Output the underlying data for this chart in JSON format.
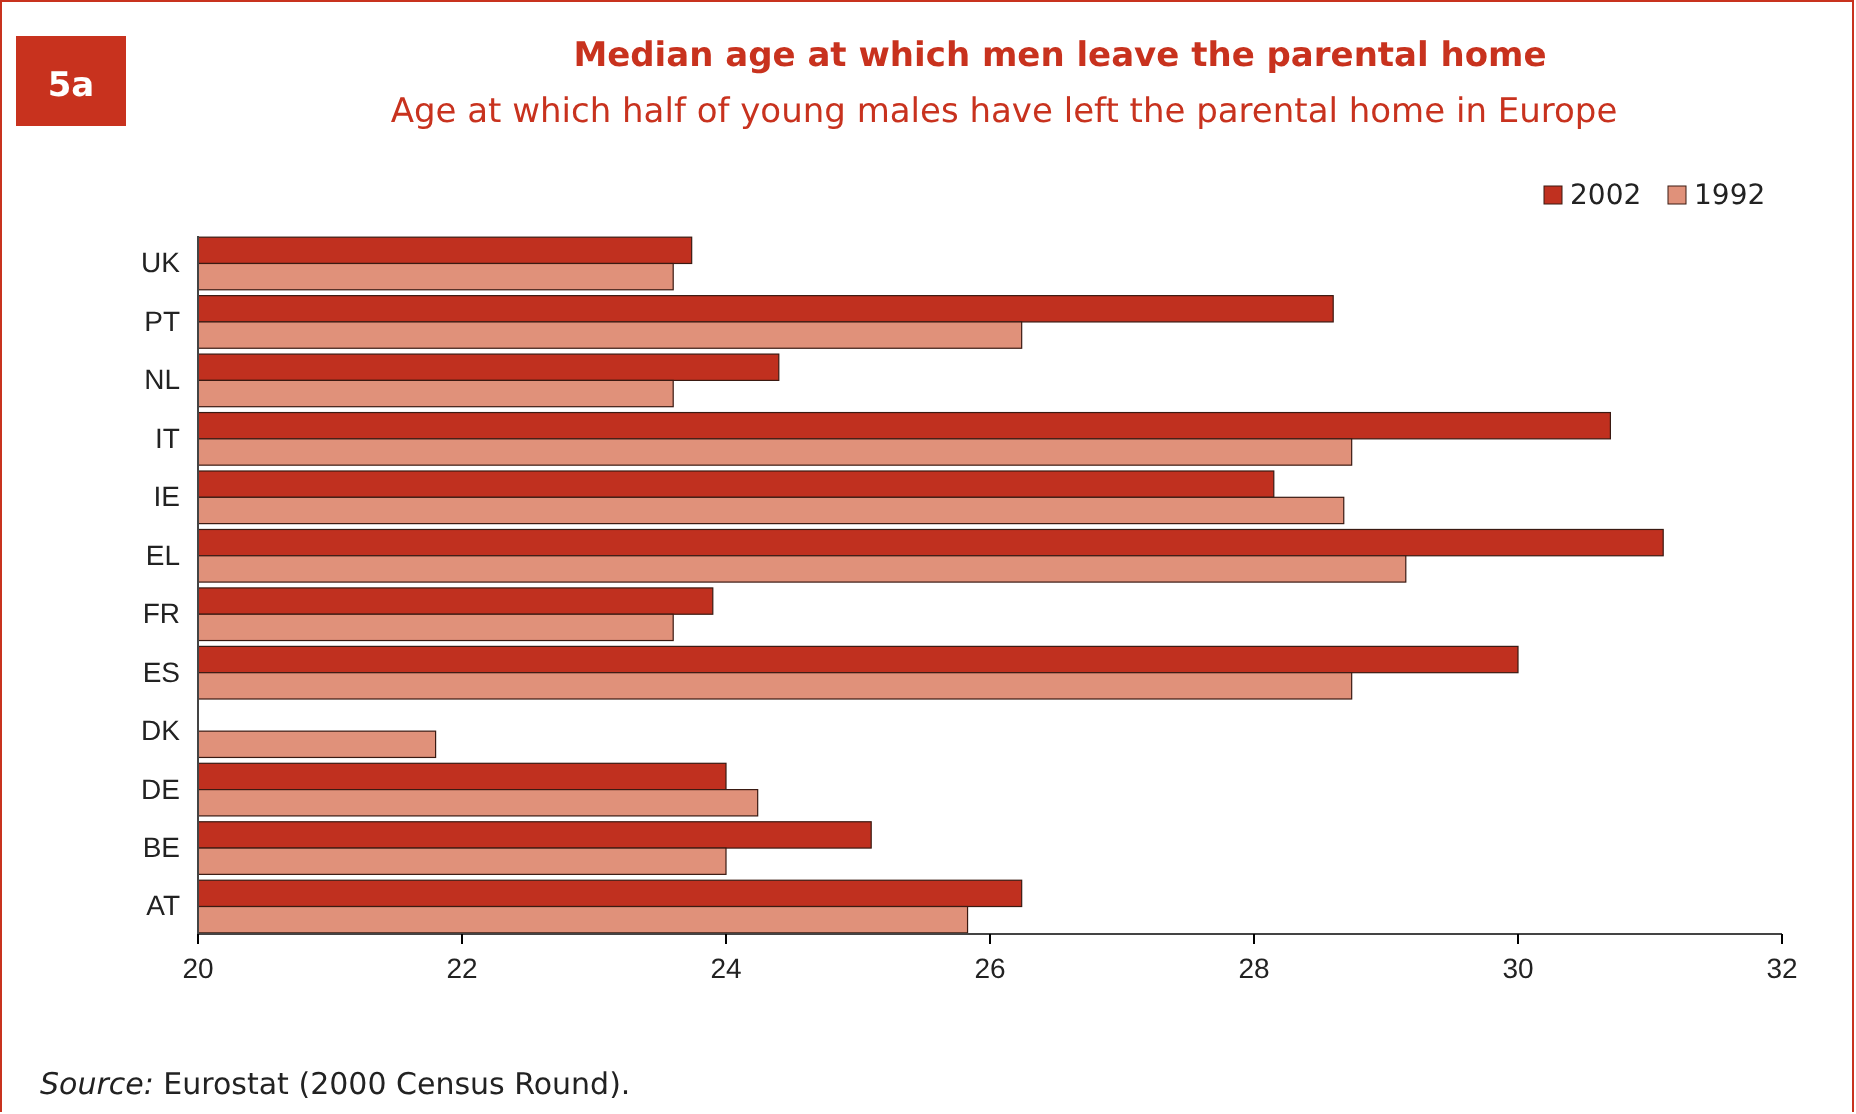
{
  "chart_data": {
    "type": "bar",
    "orientation": "horizontal",
    "title": "Median age at which men leave the parental home",
    "subtitle": "Age at which half of young males have left the parental home in Europe",
    "annotations": [
      "5a",
      "Source: Eurostat (2000 Census Round)."
    ],
    "categories": [
      "UK",
      "PT",
      "NL",
      "IT",
      "IE",
      "EL",
      "FR",
      "ES",
      "DK",
      "DE",
      "BE",
      "AT"
    ],
    "series": [
      {
        "name": "2002",
        "color": "#c0301f",
        "values": [
          23.74,
          28.6,
          24.4,
          30.7,
          28.15,
          31.1,
          23.9,
          30.0,
          null,
          24.0,
          25.1,
          26.24
        ]
      },
      {
        "name": "1992",
        "color": "#e0917a",
        "values": [
          23.6,
          26.24,
          23.6,
          28.74,
          28.68,
          29.15,
          23.6,
          28.74,
          21.8,
          24.24,
          24.0,
          25.83
        ]
      }
    ],
    "xlim": [
      20,
      32
    ],
    "xticks": [
      20,
      22,
      24,
      26,
      28,
      30,
      32
    ],
    "grid": false,
    "legend": "top right"
  }
}
